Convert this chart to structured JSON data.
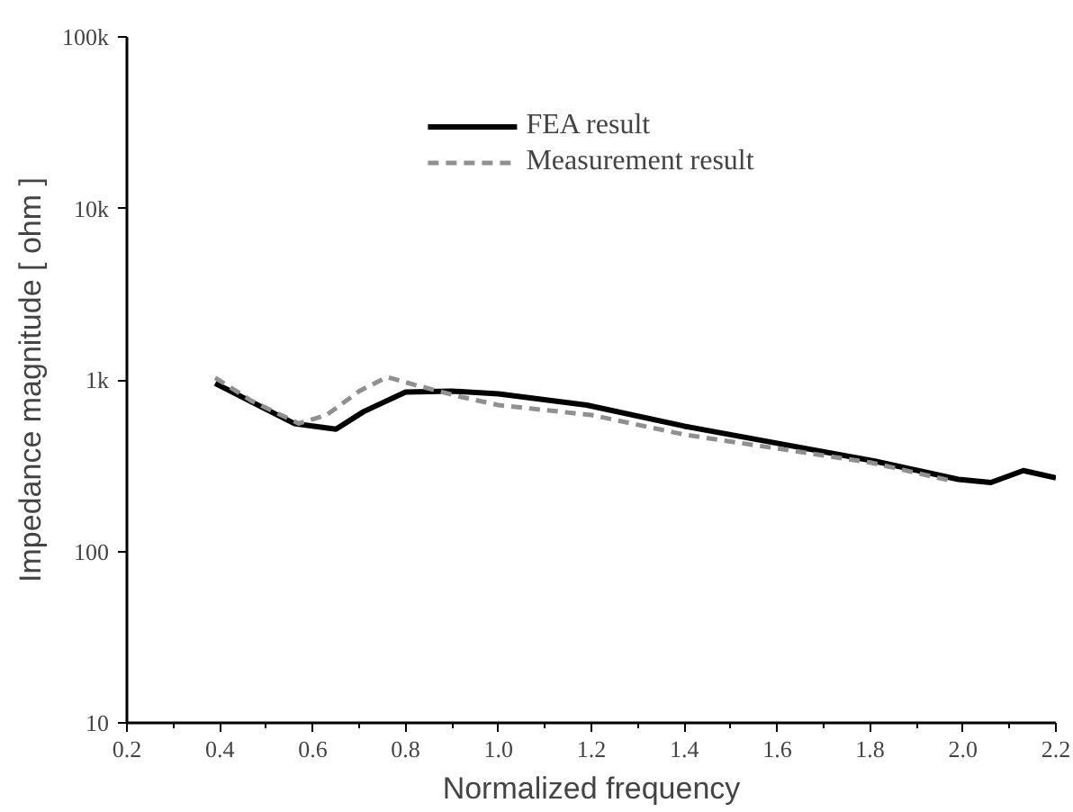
{
  "chart_data": {
    "type": "line",
    "xlabel": "Normalized frequency",
    "ylabel": "Impedance magnitude [ ohm ]",
    "log": "y",
    "grid": false,
    "legend": "top",
    "marker": "none",
    "xlim": [
      0.2,
      2.2
    ],
    "ylim": [
      10,
      100000
    ],
    "xticks": [
      0.2,
      0.4,
      0.6,
      0.8,
      {
        "value": 1.0,
        "label": "1.0"
      },
      1.2,
      1.4,
      1.6,
      1.8,
      {
        "value": 2.0,
        "label": "2.0"
      },
      2.2
    ],
    "yticks": [
      10,
      100,
      {
        "value": 1000,
        "label": "1k"
      },
      {
        "value": 10000,
        "label": "10k"
      },
      {
        "value": 100000,
        "label": "100k"
      }
    ],
    "series": [
      {
        "name": "FEA result",
        "color": "#000000",
        "line_style": "solid",
        "x": [
          0.39,
          0.47,
          0.56,
          0.65,
          0.71,
          0.8,
          0.9,
          1.0,
          1.19,
          1.4,
          1.6,
          1.81,
          1.99,
          2.06,
          2.13,
          2.2
        ],
        "values": [
          955,
          740,
          557,
          516,
          654,
          850,
          860,
          830,
          713,
          537,
          427,
          336,
          263,
          252,
          296,
          268
        ]
      },
      {
        "name": "Measurement result",
        "color": "#909090",
        "line_style": "dashed",
        "x": [
          0.39,
          0.47,
          0.57,
          0.63,
          0.7,
          0.76,
          0.82,
          0.92,
          1.0,
          1.2,
          1.4,
          1.6,
          1.8,
          1.97
        ],
        "values": [
          1030,
          750,
          557,
          624,
          860,
          1040,
          935,
          795,
          713,
          624,
          480,
          398,
          330,
          260
        ]
      }
    ]
  }
}
